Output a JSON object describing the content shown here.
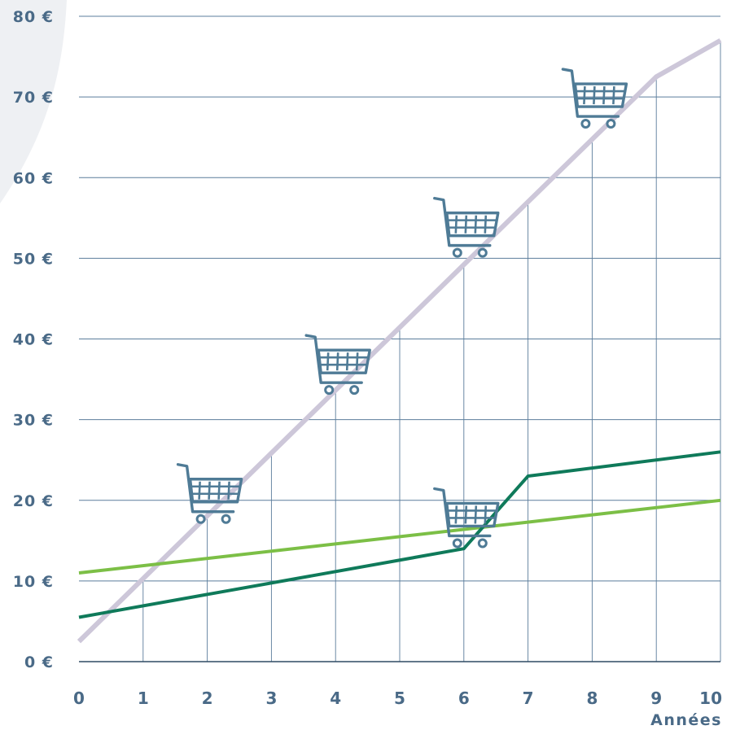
{
  "chart_data": {
    "type": "line",
    "x": [
      0,
      1,
      2,
      3,
      4,
      5,
      6,
      7,
      8,
      9,
      10
    ],
    "x_ticks": [
      "0",
      "1",
      "2",
      "3",
      "4",
      "5",
      "6",
      "7",
      "8",
      "9",
      "10"
    ],
    "xlabel": "Années",
    "y_ticks": [
      0,
      10,
      20,
      30,
      40,
      50,
      60,
      70,
      80
    ],
    "y_unit": "€",
    "ylim": [
      0,
      80
    ],
    "xlim": [
      0,
      10
    ],
    "grid": true,
    "series": [
      {
        "color": "#cdc7d9",
        "points": [
          [
            0,
            2.5
          ],
          [
            7,
            57
          ],
          [
            9,
            72.5
          ],
          [
            10,
            77
          ]
        ]
      },
      {
        "color": "#7cbf46",
        "points": [
          [
            0,
            11
          ],
          [
            10,
            20
          ]
        ]
      },
      {
        "color": "#0f7a5a",
        "points": [
          [
            0,
            5.5
          ],
          [
            6,
            14
          ],
          [
            7,
            23
          ],
          [
            10,
            26
          ]
        ]
      }
    ],
    "cart_icons": [
      {
        "name": "cart-icon-year-2",
        "x": 2,
        "y": 20
      },
      {
        "name": "cart-icon-year-4",
        "x": 4,
        "y": 36
      },
      {
        "name": "cart-icon-year-6-high",
        "x": 6,
        "y": 53
      },
      {
        "name": "cart-icon-year-6-low",
        "x": 6,
        "y": 17
      },
      {
        "name": "cart-icon-year-8",
        "x": 8,
        "y": 69
      }
    ],
    "colors": {
      "tick_label": "#4a6a87",
      "grid": "#5b7d9c",
      "axis": "#2f4a63",
      "cart": "#4f7b96",
      "background_shape": "#eef0f3"
    }
  }
}
